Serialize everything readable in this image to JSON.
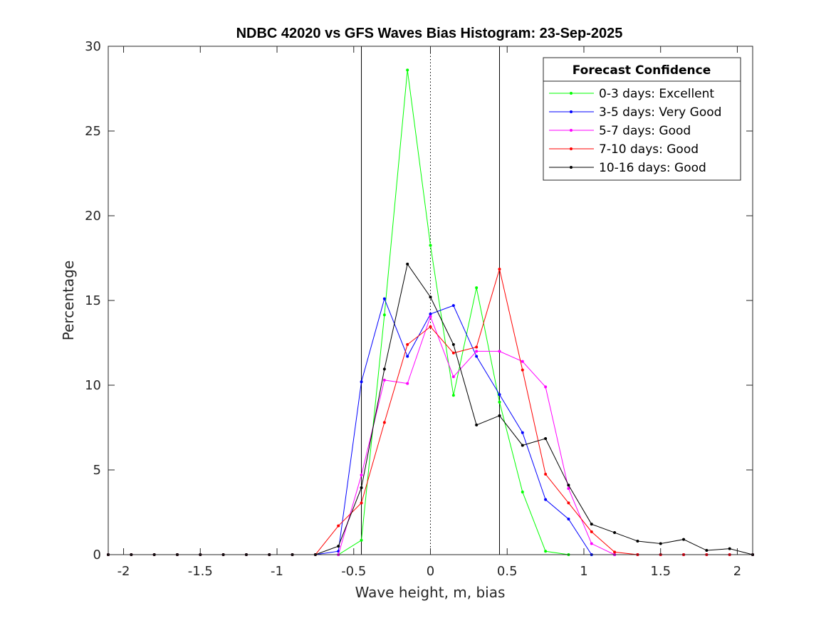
{
  "chart_data": {
    "type": "line",
    "title": "NDBC 42020 vs GFS Waves Bias Histogram: 23-Sep-2025",
    "xlabel": "Wave height, m, bias",
    "ylabel": "Percentage",
    "xlim": [
      -2.1,
      2.1
    ],
    "ylim": [
      0,
      30
    ],
    "xticks": [
      -2,
      -1.5,
      -1,
      -0.5,
      0,
      0.5,
      1,
      1.5,
      2
    ],
    "xtick_labels": [
      "-2",
      "-1.5",
      "-1",
      "-0.5",
      "0",
      "0.5",
      "1",
      "1.5",
      "2"
    ],
    "yticks": [
      0,
      5,
      10,
      15,
      20,
      25,
      30
    ],
    "ytick_labels": [
      "0",
      "5",
      "10",
      "15",
      "20",
      "25",
      "30"
    ],
    "vlines": [
      {
        "x": -0.45,
        "style": "solid"
      },
      {
        "x": 0,
        "style": "dotted"
      },
      {
        "x": 0.45,
        "style": "solid"
      }
    ],
    "legend_title": "Forecast Confidence",
    "legend_position": "top-right",
    "x": [
      -2.1,
      -1.95,
      -1.8,
      -1.65,
      -1.5,
      -1.35,
      -1.2,
      -1.05,
      -0.9,
      -0.75,
      -0.6,
      -0.45,
      -0.3,
      -0.15,
      0,
      0.15,
      0.3,
      0.45,
      0.6,
      0.75,
      0.9,
      1.05,
      1.2,
      1.35,
      1.5,
      1.65,
      1.8,
      1.95,
      2.1
    ],
    "series": [
      {
        "name": "0-3 days: Excellent",
        "color": "#00ff00",
        "values": [
          0,
          0,
          0,
          0,
          0,
          0,
          0,
          0,
          0,
          0,
          0,
          0.85,
          14.15,
          28.6,
          18.25,
          9.4,
          15.75,
          9.0,
          3.7,
          0.2,
          0,
          0,
          0,
          0,
          0,
          0,
          0,
          0,
          0
        ]
      },
      {
        "name": "3-5 days: Very Good",
        "color": "#0000ff",
        "values": [
          0,
          0,
          0,
          0,
          0,
          0,
          0,
          0,
          0,
          0,
          0.2,
          10.2,
          15.1,
          11.7,
          14.2,
          14.7,
          11.7,
          9.45,
          7.2,
          3.25,
          2.1,
          0,
          0,
          0,
          0,
          0,
          0,
          0,
          0
        ]
      },
      {
        "name": "5-7 days: Good",
        "color": "#ff00ff",
        "values": [
          0,
          0,
          0,
          0,
          0,
          0,
          0,
          0,
          0,
          0,
          0,
          4.7,
          10.3,
          10.1,
          14.05,
          10.5,
          12.0,
          12.0,
          11.4,
          9.9,
          3.9,
          0.65,
          0,
          0,
          0,
          0,
          0,
          0,
          0
        ]
      },
      {
        "name": "7-10 days: Good",
        "color": "#ff0000",
        "values": [
          0,
          0,
          0,
          0,
          0,
          0,
          0,
          0,
          0,
          0,
          1.7,
          3.05,
          7.8,
          12.4,
          13.45,
          11.9,
          12.25,
          16.85,
          10.9,
          4.75,
          3.05,
          1.35,
          0.15,
          0,
          0,
          0,
          0,
          0,
          0
        ]
      },
      {
        "name": "10-16 days: Good",
        "color": "#000000",
        "values": [
          0,
          0,
          0,
          0,
          0,
          0,
          0,
          0,
          0,
          0,
          0.5,
          3.95,
          10.95,
          17.15,
          15.2,
          12.4,
          7.65,
          8.2,
          6.45,
          6.85,
          4.1,
          1.8,
          1.3,
          0.8,
          0.65,
          0.9,
          0.25,
          0.35,
          0
        ]
      }
    ]
  }
}
